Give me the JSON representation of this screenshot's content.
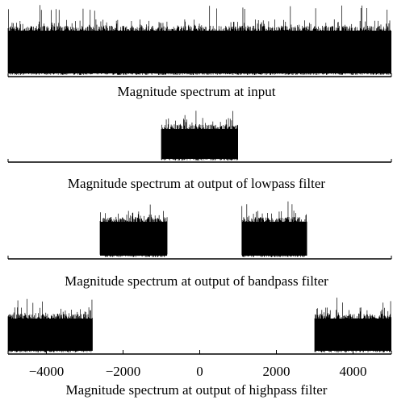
{
  "chart_data": [
    {
      "type": "line",
      "title": "",
      "caption": "Magnitude spectrum at input",
      "xlabel": "",
      "ylabel": "",
      "xlim": [
        -5000,
        5000
      ],
      "grid": false,
      "passbands": [
        [
          -5000,
          5000
        ]
      ]
    },
    {
      "type": "line",
      "title": "",
      "caption": "Magnitude spectrum at output of lowpass filter",
      "xlabel": "",
      "ylabel": "",
      "xlim": [
        -5000,
        5000
      ],
      "grid": false,
      "passbands": [
        [
          -1000,
          1000
        ]
      ]
    },
    {
      "type": "line",
      "title": "",
      "caption": "Magnitude spectrum at output of bandpass filter",
      "xlabel": "",
      "ylabel": "",
      "xlim": [
        -5000,
        5000
      ],
      "grid": false,
      "passbands": [
        [
          -2600,
          -850
        ],
        [
          1100,
          2800
        ]
      ]
    },
    {
      "type": "line",
      "title": "",
      "caption": "Magnitude spectrum at output of highpass filter",
      "xlabel": "",
      "ylabel": "",
      "xlim": [
        -5000,
        5000
      ],
      "grid": false,
      "xticks": [
        -4000,
        -2000,
        0,
        2000,
        4000
      ],
      "xtick_labels": [
        "−4000",
        "−2000",
        "0",
        "2000",
        "4000"
      ],
      "passbands": [
        [
          -5000,
          -2800
        ],
        [
          3000,
          5000
        ]
      ]
    }
  ]
}
